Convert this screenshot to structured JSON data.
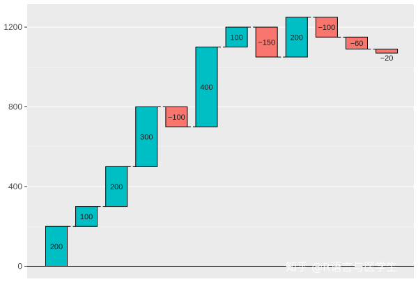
{
  "chart_data": {
    "type": "waterfall",
    "values": [
      200,
      100,
      200,
      300,
      -100,
      400,
      100,
      -150,
      200,
      -100,
      -60,
      -20
    ],
    "bar_labels": [
      "200",
      "100",
      "200",
      "300",
      "−100",
      "400",
      "100",
      "−150",
      "200",
      "−100",
      "−60",
      "−20"
    ],
    "y_ticks": [
      0,
      400,
      800,
      1200
    ],
    "y_tick_labels": [
      "0",
      "400",
      "800",
      "1200"
    ],
    "ylim": [
      -60,
      1260
    ],
    "grid": true,
    "colors": {
      "increase": "#00BFC4",
      "decrease": "#F8766D",
      "panel": "#EBEBEB",
      "grid": "#FFFFFF"
    }
  },
  "watermark": "知乎 @R语言与医学生"
}
